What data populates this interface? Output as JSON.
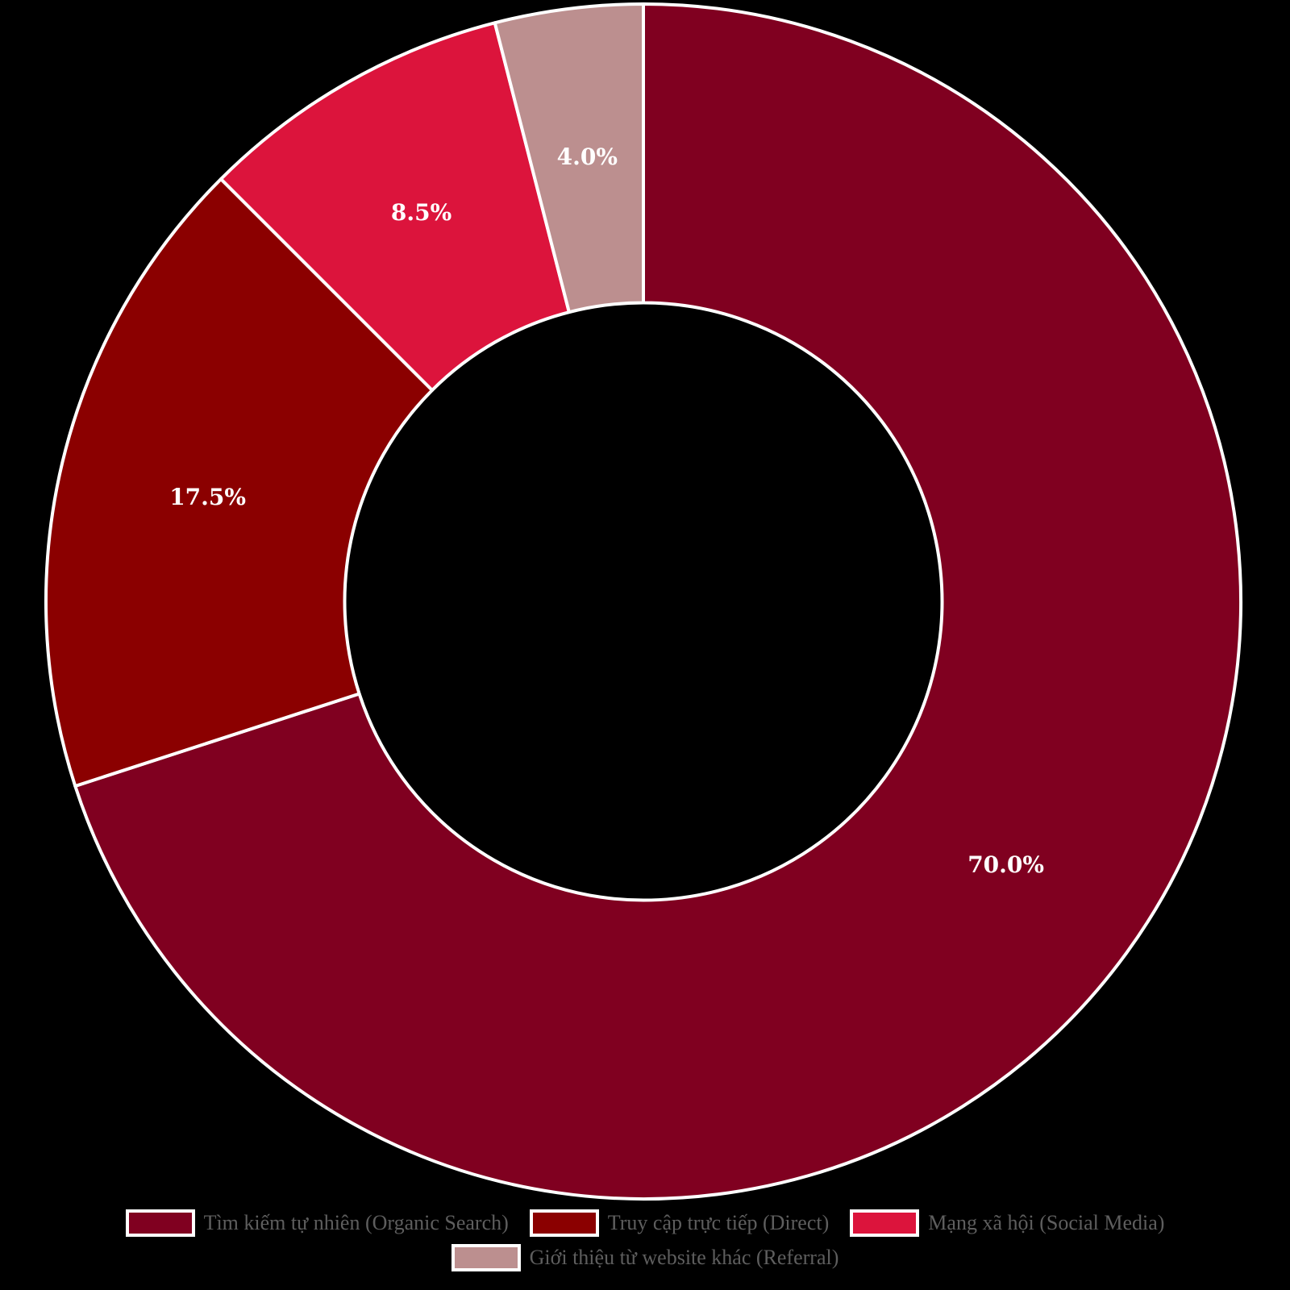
{
  "background": "#000000",
  "chart_data": {
    "type": "pie",
    "subtype": "donut",
    "title": "",
    "categories": [
      "Tìm kiếm tự nhiên (Organic Search)",
      "Truy cập trực tiếp (Direct)",
      "Mạng xã hội (Social Media)",
      "Giới thiệu từ website khác (Referral)"
    ],
    "values": [
      70.0,
      17.5,
      8.5,
      4.0
    ],
    "pct_labels": [
      "70.0%",
      "17.5%",
      "8.5%",
      "4.0%"
    ],
    "colors": [
      "#800020",
      "#8B0000",
      "#DC143C",
      "#BC8F8F"
    ],
    "start_angle_deg": 90,
    "direction": "clockwise",
    "hole_ratio": 0.5,
    "pct_distance": 0.75,
    "wedge_edge_color": "#FFFFFF",
    "pct_label_color": "#FFFFFF",
    "legend": {
      "position": "lower center",
      "rows": [
        3,
        1
      ],
      "text_color": "#5E5E5E"
    }
  }
}
